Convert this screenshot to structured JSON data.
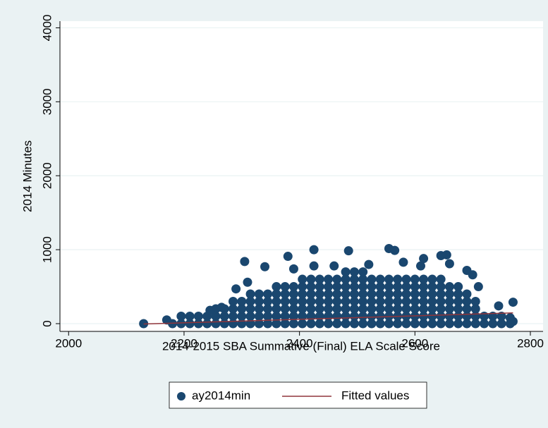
{
  "chart_data": {
    "type": "scatter",
    "xlabel": "2014-2015 SBA Summative (Final) ELA Scale Score",
    "ylabel": "2014 Minutes",
    "xlim": [
      1985,
      2822
    ],
    "ylim": [
      -105,
      4090
    ],
    "xticks": [
      2000,
      2200,
      2400,
      2600,
      2800
    ],
    "yticks": [
      0,
      1000,
      2000,
      3000,
      4000
    ],
    "grid": true,
    "legend": "bottom",
    "series": [
      {
        "name": "ay2014min",
        "color": "#1a476f",
        "kind": "scatter",
        "x": [
          2180,
          2195,
          2195,
          2210,
          2210,
          2225,
          2225,
          2240,
          2240,
          2255,
          2255,
          2255,
          2270,
          2270,
          2270,
          2285,
          2285,
          2285,
          2285,
          2300,
          2300,
          2300,
          2300,
          2315,
          2315,
          2315,
          2315,
          2315,
          2330,
          2330,
          2330,
          2330,
          2330,
          2345,
          2345,
          2345,
          2345,
          2345,
          2360,
          2360,
          2360,
          2360,
          2360,
          2360,
          2375,
          2375,
          2375,
          2375,
          2375,
          2375,
          2390,
          2390,
          2390,
          2390,
          2390,
          2390,
          2405,
          2405,
          2405,
          2405,
          2405,
          2405,
          2405,
          2420,
          2420,
          2420,
          2420,
          2420,
          2420,
          2420,
          2435,
          2435,
          2435,
          2435,
          2435,
          2435,
          2435,
          2450,
          2450,
          2450,
          2450,
          2450,
          2450,
          2450,
          2465,
          2465,
          2465,
          2465,
          2465,
          2465,
          2465,
          2480,
          2480,
          2480,
          2480,
          2480,
          2480,
          2480,
          2480,
          2495,
          2495,
          2495,
          2495,
          2495,
          2495,
          2495,
          2495,
          2510,
          2510,
          2510,
          2510,
          2510,
          2510,
          2510,
          2510,
          2525,
          2525,
          2525,
          2525,
          2525,
          2525,
          2525,
          2540,
          2540,
          2540,
          2540,
          2540,
          2540,
          2540,
          2555,
          2555,
          2555,
          2555,
          2555,
          2555,
          2555,
          2570,
          2570,
          2570,
          2570,
          2570,
          2570,
          2570,
          2585,
          2585,
          2585,
          2585,
          2585,
          2585,
          2585,
          2600,
          2600,
          2600,
          2600,
          2600,
          2600,
          2600,
          2615,
          2615,
          2615,
          2615,
          2615,
          2615,
          2615,
          2630,
          2630,
          2630,
          2630,
          2630,
          2630,
          2630,
          2645,
          2645,
          2645,
          2645,
          2645,
          2645,
          2645,
          2660,
          2660,
          2660,
          2660,
          2660,
          2660,
          2675,
          2675,
          2675,
          2675,
          2675,
          2675,
          2690,
          2690,
          2690,
          2690,
          2690,
          2705,
          2705,
          2705,
          2705,
          2720,
          2720,
          2735,
          2735,
          2750,
          2750,
          2765,
          2130,
          2170,
          2305,
          2380,
          2425,
          2485,
          2555,
          2565,
          2615,
          2645,
          2655,
          2610,
          2340,
          2290,
          2310,
          2265,
          2245,
          2770,
          2745,
          2765,
          2770,
          2710,
          2700,
          2690,
          2520,
          2460,
          2390,
          2425,
          2580,
          2660
        ],
        "values": [
          0,
          0,
          100,
          0,
          100,
          0,
          100,
          0,
          100,
          0,
          100,
          200,
          0,
          100,
          200,
          0,
          100,
          200,
          300,
          0,
          100,
          200,
          300,
          0,
          100,
          200,
          300,
          400,
          0,
          100,
          200,
          300,
          400,
          0,
          100,
          200,
          300,
          400,
          0,
          100,
          200,
          300,
          400,
          500,
          0,
          100,
          200,
          300,
          400,
          500,
          0,
          100,
          200,
          300,
          400,
          500,
          0,
          100,
          200,
          300,
          400,
          500,
          600,
          0,
          100,
          200,
          300,
          400,
          500,
          600,
          0,
          100,
          200,
          300,
          400,
          500,
          600,
          0,
          100,
          200,
          300,
          400,
          500,
          600,
          0,
          100,
          200,
          300,
          400,
          500,
          600,
          0,
          100,
          200,
          300,
          400,
          500,
          600,
          700,
          0,
          100,
          200,
          300,
          400,
          500,
          600,
          700,
          0,
          100,
          200,
          300,
          400,
          500,
          600,
          700,
          0,
          100,
          200,
          300,
          400,
          500,
          600,
          0,
          100,
          200,
          300,
          400,
          500,
          600,
          0,
          100,
          200,
          300,
          400,
          500,
          600,
          0,
          100,
          200,
          300,
          400,
          500,
          600,
          0,
          100,
          200,
          300,
          400,
          500,
          600,
          0,
          100,
          200,
          300,
          400,
          500,
          600,
          0,
          100,
          200,
          300,
          400,
          500,
          600,
          0,
          100,
          200,
          300,
          400,
          500,
          600,
          0,
          100,
          200,
          300,
          400,
          500,
          600,
          0,
          100,
          200,
          300,
          400,
          500,
          0,
          100,
          200,
          300,
          400,
          500,
          0,
          100,
          200,
          300,
          400,
          0,
          100,
          200,
          300,
          0,
          100,
          0,
          100,
          0,
          100,
          0,
          0,
          50,
          840,
          910,
          1000,
          985,
          1015,
          990,
          880,
          920,
          930,
          780,
          770,
          470,
          560,
          220,
          180,
          290,
          240,
          80,
          30,
          500,
          660,
          720,
          800,
          780,
          740,
          780,
          830,
          810
        ]
      },
      {
        "name": "Fitted values",
        "color": "#90353b",
        "kind": "line",
        "x": [
          2130,
          2770
        ],
        "values": [
          -5,
          145
        ]
      }
    ]
  }
}
